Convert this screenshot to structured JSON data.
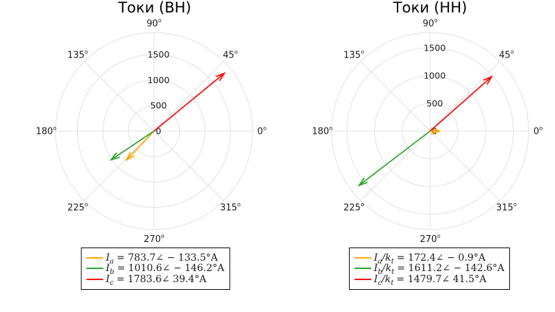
{
  "chart_data": [
    {
      "type": "polar_vector",
      "title": "Токи (ВН)",
      "units": "A",
      "grid": true,
      "legend_position": "below",
      "angle_tick_labels": [
        "0",
        "45",
        "90",
        "135",
        "180",
        "225",
        "270",
        "315"
      ],
      "angle_sup": "o",
      "r_ticks": [
        0,
        500,
        1000,
        1500
      ],
      "r_tick_labels": [
        "0",
        "500",
        "1000",
        "1500"
      ],
      "r_axis_max": 1930,
      "series": [
        {
          "name": "I_a",
          "magnitude": 783.7,
          "angle_deg": -133.5,
          "color": "#FFA500",
          "legend_var": "I",
          "legend_var_sub": "a",
          "legend_div": "",
          "legend_div_sub": "",
          "legend_value": "= 783.7∠ − 133.5°A"
        },
        {
          "name": "I_b",
          "magnitude": 1010.6,
          "angle_deg": -146.2,
          "color": "#28A228",
          "legend_var": "I",
          "legend_var_sub": "b",
          "legend_div": "",
          "legend_div_sub": "",
          "legend_value": "= 1010.6∠ − 146.2°A"
        },
        {
          "name": "I_c",
          "magnitude": 1783.6,
          "angle_deg": 39.4,
          "color": "#FF0000",
          "legend_var": "I",
          "legend_var_sub": "c",
          "legend_div": "",
          "legend_div_sub": "",
          "legend_value": "= 1783.6∠ 39.4°A"
        }
      ]
    },
    {
      "type": "polar_vector",
      "title": "Токи (НН)",
      "units": "A",
      "grid": true,
      "legend_position": "below",
      "angle_tick_labels": [
        "0",
        "45",
        "90",
        "135",
        "180",
        "225",
        "270",
        "315"
      ],
      "angle_sup": "o",
      "r_ticks": [
        0,
        500,
        1000,
        1500
      ],
      "r_tick_labels": [
        "0",
        "500",
        "1000",
        "1500"
      ],
      "r_axis_max": 1775,
      "series": [
        {
          "name": "I_a/k_t",
          "magnitude": 172.4,
          "angle_deg": -0.9,
          "color": "#FFA500",
          "legend_var": "I",
          "legend_var_sub": "a",
          "legend_div": "/k",
          "legend_div_sub": "t",
          "legend_value": "= 172.4∠ − 0.9°A"
        },
        {
          "name": "I_b/k_t",
          "magnitude": 1611.2,
          "angle_deg": -142.6,
          "color": "#28A228",
          "legend_var": "I",
          "legend_var_sub": "b",
          "legend_div": "/k",
          "legend_div_sub": "t",
          "legend_value": "= 1611.2∠ − 142.6°A"
        },
        {
          "name": "I_c/k_t",
          "magnitude": 1479.7,
          "angle_deg": 41.5,
          "color": "#FF0000",
          "legend_var": "I",
          "legend_var_sub": "c",
          "legend_div": "/k",
          "legend_div_sub": "t",
          "legend_value": "= 1479.7∠ 41.5°A"
        }
      ]
    }
  ]
}
